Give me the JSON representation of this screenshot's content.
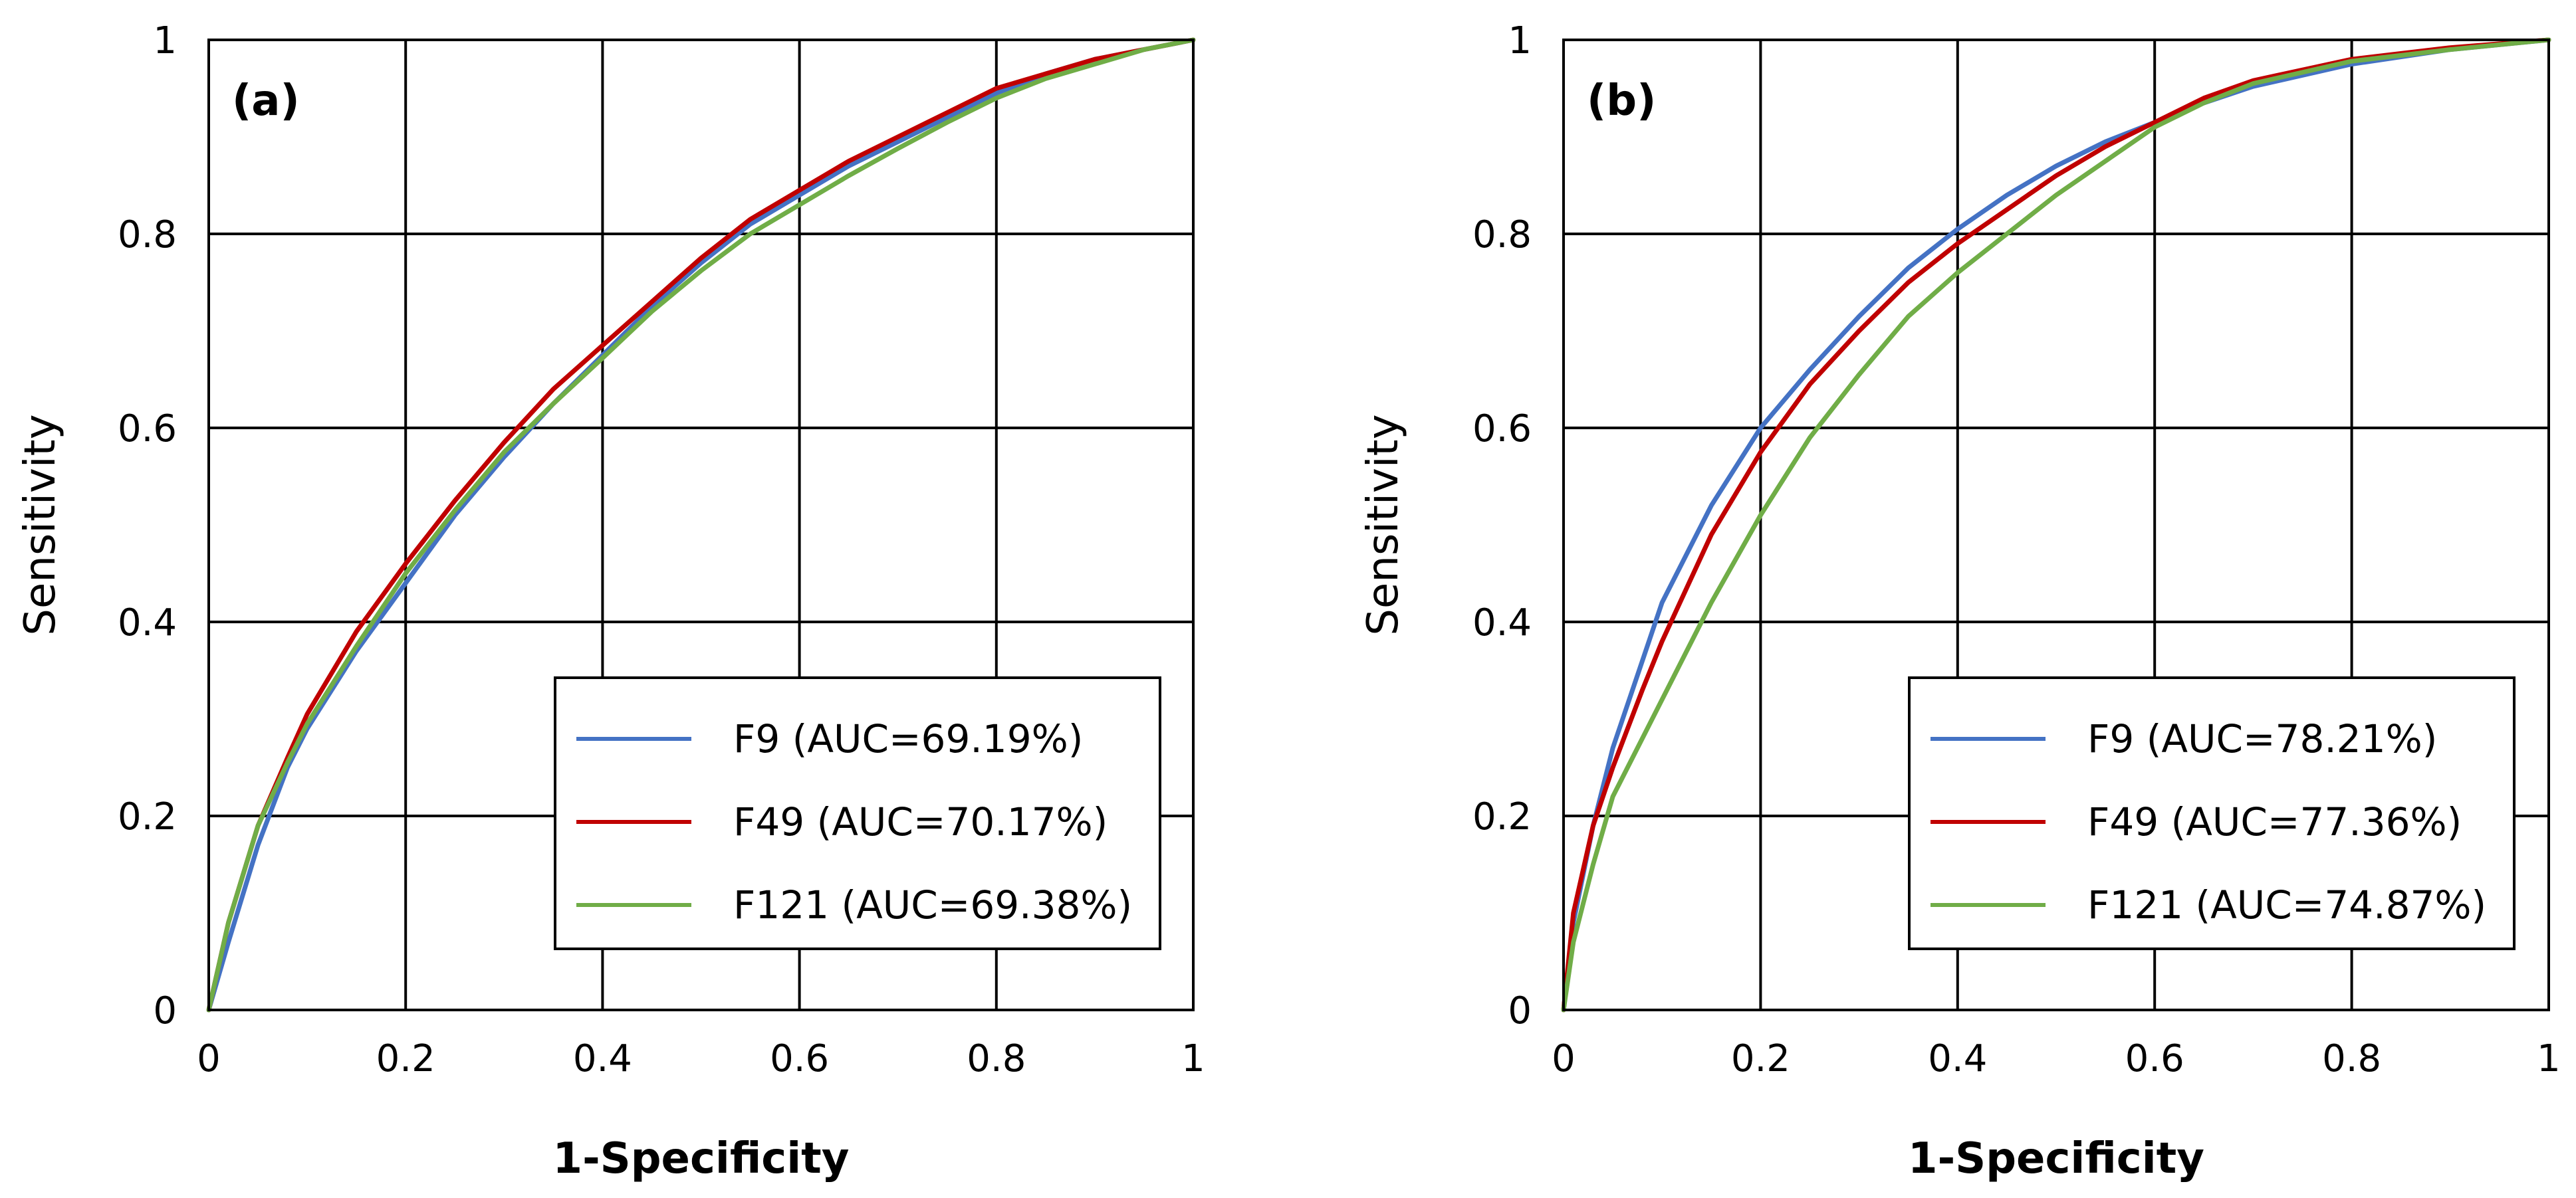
{
  "chart_data": [
    {
      "type": "line",
      "panel_label": "(a)",
      "xlabel": "1-Specificity",
      "ylabel": "Sensitivity",
      "xlim": [
        0,
        1
      ],
      "ylim": [
        0,
        1
      ],
      "x_ticks": [
        "0",
        "0.2",
        "0.4",
        "0.6",
        "0.8",
        "1"
      ],
      "y_ticks": [
        "0",
        "0.2",
        "0.4",
        "0.6",
        "0.8",
        "1"
      ],
      "grid": true,
      "legend_position": "bottom-right",
      "series": [
        {
          "name": "F9 (AUC=69.19%)",
          "color": "#4472C4",
          "x": [
            0,
            0.02,
            0.05,
            0.08,
            0.1,
            0.15,
            0.2,
            0.25,
            0.3,
            0.35,
            0.4,
            0.45,
            0.5,
            0.55,
            0.6,
            0.65,
            0.7,
            0.75,
            0.8,
            0.85,
            0.9,
            0.95,
            1.0
          ],
          "y": [
            0,
            0.07,
            0.17,
            0.25,
            0.29,
            0.37,
            0.44,
            0.51,
            0.57,
            0.625,
            0.675,
            0.725,
            0.77,
            0.81,
            0.84,
            0.87,
            0.895,
            0.92,
            0.945,
            0.965,
            0.98,
            0.99,
            1.0
          ]
        },
        {
          "name": "F49 (AUC=70.17%)",
          "color": "#C00000",
          "x": [
            0,
            0.02,
            0.05,
            0.08,
            0.1,
            0.15,
            0.2,
            0.25,
            0.3,
            0.35,
            0.4,
            0.45,
            0.5,
            0.55,
            0.6,
            0.65,
            0.7,
            0.75,
            0.8,
            0.85,
            0.9,
            0.95,
            1.0
          ],
          "y": [
            0,
            0.09,
            0.19,
            0.26,
            0.305,
            0.39,
            0.46,
            0.525,
            0.585,
            0.64,
            0.685,
            0.73,
            0.775,
            0.815,
            0.845,
            0.875,
            0.9,
            0.925,
            0.95,
            0.965,
            0.98,
            0.99,
            1.0
          ]
        },
        {
          "name": "F121 (AUC=69.38%)",
          "color": "#70AD47",
          "x": [
            0,
            0.02,
            0.05,
            0.08,
            0.1,
            0.15,
            0.2,
            0.25,
            0.3,
            0.35,
            0.4,
            0.45,
            0.5,
            0.55,
            0.6,
            0.65,
            0.7,
            0.75,
            0.8,
            0.85,
            0.9,
            0.95,
            1.0
          ],
          "y": [
            0,
            0.09,
            0.19,
            0.255,
            0.295,
            0.375,
            0.45,
            0.515,
            0.575,
            0.625,
            0.672,
            0.72,
            0.762,
            0.8,
            0.83,
            0.86,
            0.888,
            0.915,
            0.94,
            0.96,
            0.975,
            0.99,
            1.0
          ]
        }
      ]
    },
    {
      "type": "line",
      "panel_label": "(b)",
      "xlabel": "1-Specificity",
      "ylabel": "Sensitivity",
      "xlim": [
        0,
        1
      ],
      "ylim": [
        0,
        1
      ],
      "x_ticks": [
        "0",
        "0.2",
        "0.4",
        "0.6",
        "0.8",
        "1"
      ],
      "y_ticks": [
        "0",
        "0.2",
        "0.4",
        "0.6",
        "0.8",
        "1"
      ],
      "grid": true,
      "legend_position": "bottom-right",
      "series": [
        {
          "name": "F9 (AUC=78.21%)",
          "color": "#4472C4",
          "x": [
            0,
            0.01,
            0.03,
            0.05,
            0.08,
            0.1,
            0.15,
            0.2,
            0.25,
            0.3,
            0.35,
            0.4,
            0.45,
            0.5,
            0.55,
            0.6,
            0.65,
            0.7,
            0.8,
            0.9,
            1.0
          ],
          "y": [
            0,
            0.09,
            0.19,
            0.27,
            0.36,
            0.42,
            0.52,
            0.6,
            0.66,
            0.715,
            0.765,
            0.805,
            0.84,
            0.87,
            0.895,
            0.915,
            0.935,
            0.952,
            0.975,
            0.99,
            1.0
          ]
        },
        {
          "name": "F49 (AUC=77.36%)",
          "color": "#C00000",
          "x": [
            0,
            0.01,
            0.03,
            0.05,
            0.08,
            0.1,
            0.15,
            0.2,
            0.25,
            0.3,
            0.35,
            0.4,
            0.45,
            0.5,
            0.55,
            0.6,
            0.65,
            0.7,
            0.8,
            0.9,
            1.0
          ],
          "y": [
            0,
            0.1,
            0.19,
            0.25,
            0.33,
            0.38,
            0.49,
            0.575,
            0.645,
            0.7,
            0.75,
            0.79,
            0.825,
            0.86,
            0.89,
            0.915,
            0.94,
            0.958,
            0.98,
            0.992,
            1.0
          ]
        },
        {
          "name": "F121 (AUC=74.87%)",
          "color": "#70AD47",
          "x": [
            0,
            0.01,
            0.03,
            0.05,
            0.08,
            0.1,
            0.15,
            0.2,
            0.25,
            0.3,
            0.35,
            0.4,
            0.45,
            0.5,
            0.55,
            0.6,
            0.65,
            0.7,
            0.8,
            0.9,
            1.0
          ],
          "y": [
            0,
            0.07,
            0.15,
            0.22,
            0.28,
            0.32,
            0.42,
            0.51,
            0.59,
            0.655,
            0.715,
            0.76,
            0.8,
            0.84,
            0.875,
            0.91,
            0.935,
            0.955,
            0.978,
            0.99,
            1.0
          ]
        }
      ]
    }
  ]
}
